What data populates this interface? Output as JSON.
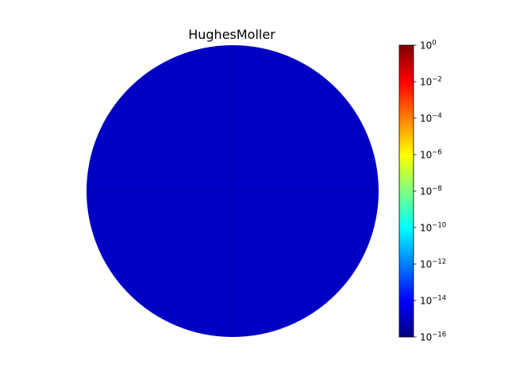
{
  "chart_data": {
    "type": "heatmap",
    "shape": "disk",
    "title": "HughesMoller",
    "xlabel": "",
    "ylabel": "",
    "grid": false,
    "scale": "log",
    "colormap": "jet",
    "disk_value": 1e-15,
    "colorbar": {
      "position": "right",
      "range": [
        1e-16,
        1
      ],
      "ticks": [
        {
          "base": "10",
          "exp": "0",
          "value": 1
        },
        {
          "base": "10",
          "exp": "−2",
          "value": 0.01
        },
        {
          "base": "10",
          "exp": "−4",
          "value": 0.0001
        },
        {
          "base": "10",
          "exp": "−6",
          "value": 1e-06
        },
        {
          "base": "10",
          "exp": "−8",
          "value": 1e-08
        },
        {
          "base": "10",
          "exp": "−10",
          "value": 1e-10
        },
        {
          "base": "10",
          "exp": "−12",
          "value": 1e-12
        },
        {
          "base": "10",
          "exp": "−14",
          "value": 1e-14
        },
        {
          "base": "10",
          "exp": "−16",
          "value": 1e-16
        }
      ]
    },
    "colors": {
      "disk_fill": "#0000c4",
      "disk_axis_line": "#00009a",
      "jet_stops": [
        "#00007f",
        "#0000ff",
        "#007fff",
        "#00ffff",
        "#7fff7f",
        "#ffff00",
        "#ff7f00",
        "#ff0000",
        "#7f0000"
      ]
    }
  }
}
